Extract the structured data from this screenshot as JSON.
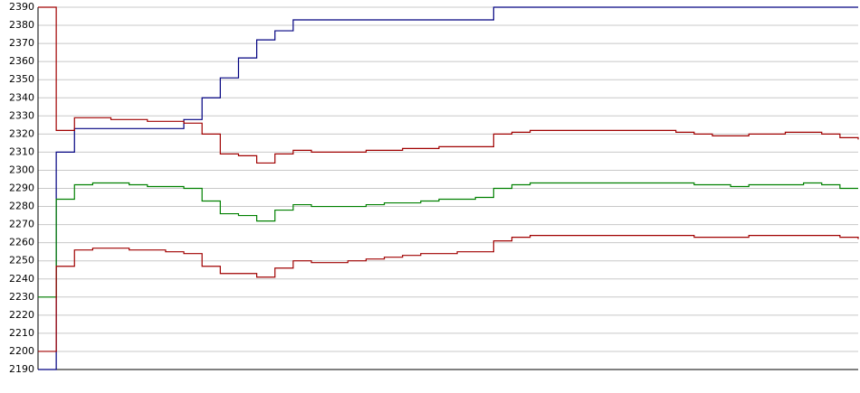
{
  "chart_data": {
    "type": "line",
    "categories": [
      null,
      null,
      null,
      null,
      null,
      null,
      null,
      null,
      null,
      null,
      null,
      null,
      null,
      null,
      null,
      null,
      null,
      null,
      null,
      null,
      null,
      null,
      null,
      null,
      null,
      null,
      null,
      null,
      null,
      null,
      null,
      null,
      null,
      null,
      null,
      null,
      null,
      null,
      null,
      null,
      null,
      null,
      null,
      null,
      null,
      null
    ],
    "series": [
      {
        "color": "#000080",
        "values": [
          2190,
          2310,
          2323,
          2323,
          2323,
          2323,
          2323,
          2323,
          2328,
          2340,
          2351,
          2362,
          2372,
          2377,
          2383,
          2383,
          2383,
          2383,
          2383,
          2383,
          2383,
          2383,
          2383,
          2383,
          2383,
          2390,
          2390,
          2390,
          2390,
          2390,
          2390,
          2390,
          2390,
          2390,
          2390,
          2390,
          2390,
          2390,
          2390,
          2390,
          2390,
          2390,
          2390,
          2390,
          2390,
          2390
        ]
      },
      {
        "color": "#a00000",
        "values": [
          2390,
          2322,
          2329,
          2329,
          2328,
          2328,
          2327,
          2327,
          2326,
          2320,
          2309,
          2308,
          2304,
          2309,
          2311,
          2310,
          2310,
          2310,
          2311,
          2311,
          2312,
          2312,
          2313,
          2313,
          2313,
          2320,
          2321,
          2322,
          2322,
          2322,
          2322,
          2322,
          2322,
          2322,
          2322,
          2321,
          2320,
          2319,
          2319,
          2320,
          2320,
          2321,
          2321,
          2320,
          2318,
          2317
        ]
      },
      {
        "color": "#008000",
        "values": [
          2230,
          2284,
          2292,
          2293,
          2293,
          2292,
          2291,
          2291,
          2290,
          2283,
          2276,
          2275,
          2272,
          2278,
          2281,
          2280,
          2280,
          2280,
          2281,
          2282,
          2282,
          2283,
          2284,
          2284,
          2285,
          2290,
          2292,
          2293,
          2293,
          2293,
          2293,
          2293,
          2293,
          2293,
          2293,
          2293,
          2292,
          2292,
          2291,
          2292,
          2292,
          2292,
          2293,
          2292,
          2290,
          2290
        ]
      },
      {
        "color": "#a00000",
        "values": [
          2200,
          2247,
          2256,
          2257,
          2257,
          2256,
          2256,
          2255,
          2254,
          2247,
          2243,
          2243,
          2241,
          2246,
          2250,
          2249,
          2249,
          2250,
          2251,
          2252,
          2253,
          2254,
          2254,
          2255,
          2255,
          2261,
          2263,
          2264,
          2264,
          2264,
          2264,
          2264,
          2264,
          2264,
          2264,
          2264,
          2263,
          2263,
          2263,
          2264,
          2264,
          2264,
          2264,
          2264,
          2263,
          2262
        ]
      }
    ],
    "ylim": [
      2190,
      2390
    ],
    "yticks": [
      2190,
      2200,
      2210,
      2220,
      2230,
      2240,
      2250,
      2260,
      2270,
      2280,
      2290,
      2300,
      2310,
      2320,
      2330,
      2340,
      2350,
      2360,
      2370,
      2380,
      2390
    ],
    "grid": true
  }
}
